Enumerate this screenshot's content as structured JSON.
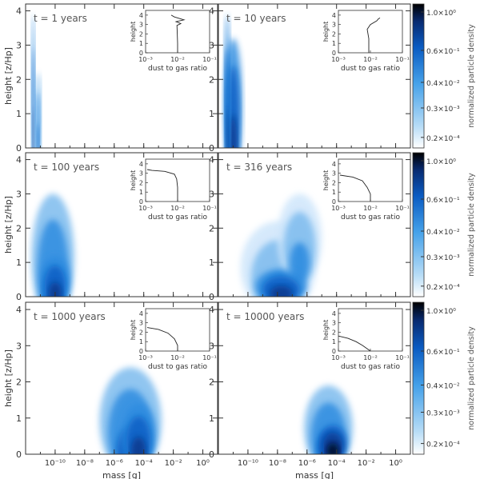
{
  "chart_data": [
    {
      "type": "heatmap",
      "panel_label": "t = 1 years",
      "xlabel": "",
      "ylabel": "height [z/Hp]",
      "x_scale": "log",
      "xlim": [
        1e-12,
        10
      ],
      "ylim": [
        0,
        4.2
      ],
      "x_ticks": [
        "10⁻¹⁰",
        "10⁻⁸",
        "10⁻⁶",
        "10⁻⁴",
        "10⁻²",
        "10⁰"
      ],
      "y_ticks": [
        "0",
        "1",
        "2",
        "3",
        "4"
      ],
      "blobs": [
        {
          "m_lo": -11.6,
          "m_hi": -11.35,
          "z_lo": 0,
          "z_hi": 3.9,
          "peak": 0.9
        },
        {
          "m_lo": -11.35,
          "m_hi": -10.95,
          "z_lo": 0,
          "z_hi": 2.2,
          "peak": 0.6
        }
      ],
      "inset": {
        "xlabel": "dust to gas ratio",
        "ylabel": "height",
        "x_ticks": [
          "10⁻³",
          "10⁻²",
          "10⁻¹"
        ],
        "y_ticks": [
          "0",
          "1",
          "2",
          "3",
          "4"
        ],
        "xlim": [
          -3,
          -1
        ],
        "ylim": [
          0,
          4.5
        ],
        "profile": [
          [
            -2.0,
            0
          ],
          [
            -2.0,
            1.0
          ],
          [
            -2.01,
            2.0
          ],
          [
            -2.02,
            2.9
          ],
          [
            -1.9,
            3.1
          ],
          [
            -2.05,
            3.3
          ],
          [
            -1.8,
            3.5
          ],
          [
            -2.1,
            3.8
          ],
          [
            -2.2,
            4.0
          ]
        ]
      }
    },
    {
      "type": "heatmap",
      "panel_label": "t = 10 years",
      "xlabel": "",
      "ylabel": "",
      "x_scale": "log",
      "xlim": [
        1e-12,
        10
      ],
      "ylim": [
        0,
        4.2
      ],
      "x_ticks": [
        "10⁻¹⁰",
        "10⁻⁸",
        "10⁻⁶",
        "10⁻⁴",
        "10⁻²",
        "10⁰"
      ],
      "y_ticks": [
        "0",
        "1",
        "2",
        "3",
        "4"
      ],
      "blobs": [
        {
          "m_lo": -11.6,
          "m_hi": -10.4,
          "z_lo": 0,
          "z_hi": 3.2,
          "peak": 0.85
        },
        {
          "m_lo": -11.6,
          "m_hi": -11.2,
          "z_lo": 0,
          "z_hi": 3.9,
          "peak": 0.8
        }
      ],
      "inset": {
        "xlabel": "dust to gas ratio",
        "ylabel": "height",
        "x_ticks": [
          "10⁻³",
          "10⁻²",
          "10⁻¹"
        ],
        "y_ticks": [
          "0",
          "1",
          "2",
          "3",
          "4"
        ],
        "xlim": [
          -3,
          -1
        ],
        "ylim": [
          0,
          4.5
        ],
        "profile": [
          [
            -2.05,
            0
          ],
          [
            -2.05,
            1.5
          ],
          [
            -2.1,
            2.5
          ],
          [
            -2.0,
            3.0
          ],
          [
            -1.8,
            3.4
          ],
          [
            -1.75,
            3.6
          ],
          [
            -1.7,
            3.7
          ]
        ]
      }
    },
    {
      "type": "heatmap",
      "panel_label": "t = 100 years",
      "xlabel": "",
      "ylabel": "height [z/Hp]",
      "x_scale": "log",
      "xlim": [
        1e-12,
        10
      ],
      "ylim": [
        0,
        4.2
      ],
      "x_ticks": [
        "10⁻¹⁰",
        "10⁻⁸",
        "10⁻⁶",
        "10⁻⁴",
        "10⁻²",
        "10⁰"
      ],
      "y_ticks": [
        "0",
        "1",
        "2",
        "3",
        "4"
      ],
      "blobs": [
        {
          "m_lo": -11.6,
          "m_hi": -8.7,
          "z_lo": 0,
          "z_hi": 3.0,
          "peak": 0.75
        },
        {
          "m_lo": -11.0,
          "m_hi": -9.0,
          "z_lo": 0,
          "z_hi": 1.2,
          "peak": 0.95
        }
      ],
      "inset": {
        "xlabel": "dust to gas ratio",
        "ylabel": "height",
        "x_ticks": [
          "10⁻³",
          "10⁻²",
          "10⁻¹"
        ],
        "y_ticks": [
          "0",
          "1",
          "2",
          "3",
          "4"
        ],
        "xlim": [
          -3,
          -1
        ],
        "ylim": [
          0,
          4.5
        ],
        "profile": [
          [
            -2.0,
            0
          ],
          [
            -2.0,
            1.5
          ],
          [
            -2.03,
            2.4
          ],
          [
            -2.1,
            2.9
          ],
          [
            -2.4,
            3.2
          ],
          [
            -2.8,
            3.3
          ],
          [
            -2.95,
            3.4
          ]
        ]
      }
    },
    {
      "type": "heatmap",
      "panel_label": "t = 316 years",
      "xlabel": "",
      "ylabel": "",
      "x_scale": "log",
      "xlim": [
        1e-12,
        10
      ],
      "ylim": [
        0,
        4.2
      ],
      "x_ticks": [
        "10⁻¹⁰",
        "10⁻⁸",
        "10⁻⁶",
        "10⁻⁴",
        "10⁻²",
        "10⁰"
      ],
      "y_ticks": [
        "0",
        "1",
        "2",
        "3",
        "4"
      ],
      "blobs": [
        {
          "m_lo": -10.5,
          "m_hi": -5.4,
          "z_lo": 0,
          "z_hi": 2.2,
          "peak": 0.55
        },
        {
          "m_lo": -8.0,
          "m_hi": -5.0,
          "z_lo": 0.9,
          "z_hi": 3.0,
          "peak": 0.5
        },
        {
          "m_lo": -9.5,
          "m_hi": -6.0,
          "z_lo": 0,
          "z_hi": 0.8,
          "peak": 0.9
        }
      ],
      "inset": {
        "xlabel": "dust to gas ratio",
        "ylabel": "height",
        "x_ticks": [
          "10⁻³",
          "10⁻²",
          "10⁻¹"
        ],
        "y_ticks": [
          "0",
          "1",
          "2",
          "3",
          "4"
        ],
        "xlim": [
          -3,
          -1
        ],
        "ylim": [
          0,
          4.5
        ],
        "profile": [
          [
            -2.0,
            0
          ],
          [
            -2.0,
            0.8
          ],
          [
            -2.1,
            1.5
          ],
          [
            -2.25,
            2.2
          ],
          [
            -2.55,
            2.6
          ],
          [
            -2.95,
            2.8
          ]
        ]
      }
    },
    {
      "type": "heatmap",
      "panel_label": "t = 1000 years",
      "xlabel": "mass [g]",
      "ylabel": "height [z/Hp]",
      "x_scale": "log",
      "xlim": [
        1e-12,
        10
      ],
      "ylim": [
        0,
        4.2
      ],
      "x_ticks": [
        "10⁻¹⁰",
        "10⁻⁸",
        "10⁻⁶",
        "10⁻⁴",
        "10⁻²",
        "10⁰"
      ],
      "y_ticks": [
        "0",
        "1",
        "2",
        "3",
        "4"
      ],
      "blobs": [
        {
          "m_lo": -7.0,
          "m_hi": -2.8,
          "z_lo": 0,
          "z_hi": 2.4,
          "peak": 0.6
        },
        {
          "m_lo": -5.5,
          "m_hi": -3.2,
          "z_lo": 0,
          "z_hi": 1.4,
          "peak": 0.95
        }
      ],
      "inset": {
        "xlabel": "dust to gas ratio",
        "ylabel": "height",
        "x_ticks": [
          "10⁻³",
          "10⁻²",
          "10⁻¹"
        ],
        "y_ticks": [
          "0",
          "1",
          "2",
          "3",
          "4"
        ],
        "xlim": [
          -3,
          -1
        ],
        "ylim": [
          0,
          4.5
        ],
        "profile": [
          [
            -2.0,
            0
          ],
          [
            -2.0,
            0.6
          ],
          [
            -2.1,
            1.3
          ],
          [
            -2.3,
            1.9
          ],
          [
            -2.6,
            2.3
          ],
          [
            -2.95,
            2.5
          ]
        ]
      }
    },
    {
      "type": "heatmap",
      "panel_label": "t = 10000 years",
      "xlabel": "mass [g]",
      "ylabel": "",
      "x_scale": "log",
      "xlim": [
        1e-12,
        10
      ],
      "ylim": [
        0,
        4.2
      ],
      "x_ticks": [
        "10⁻¹⁰",
        "10⁻⁸",
        "10⁻⁶",
        "10⁻⁴",
        "10⁻²",
        "10⁰"
      ],
      "y_ticks": [
        "0",
        "1",
        "2",
        "3",
        "4"
      ],
      "blobs": [
        {
          "m_lo": -6.2,
          "m_hi": -2.9,
          "z_lo": 0,
          "z_hi": 1.9,
          "peak": 0.7
        },
        {
          "m_lo": -5.2,
          "m_hi": -3.3,
          "z_lo": 0,
          "z_hi": 0.8,
          "peak": 1.0
        }
      ],
      "inset": {
        "xlabel": "dust to gas ratio",
        "ylabel": "height",
        "x_ticks": [
          "10⁻³",
          "10⁻²",
          "10⁻¹"
        ],
        "y_ticks": [
          "0",
          "1",
          "2",
          "3",
          "4"
        ],
        "xlim": [
          -3,
          -1
        ],
        "ylim": [
          0,
          4.5
        ],
        "profile": [
          [
            -3.0,
            1.6
          ],
          [
            -2.7,
            1.35
          ],
          [
            -2.45,
            1.0
          ],
          [
            -2.25,
            0.6
          ],
          [
            -2.1,
            0.25
          ],
          [
            -2.0,
            0
          ]
        ]
      }
    }
  ],
  "colorbar": {
    "label": "normalized particle density",
    "tick_labels": [
      "1.0×10⁰",
      "0.6×10⁻¹",
      "0.4×10⁻²",
      "0.3×10⁻³",
      "0.2×10⁻⁴"
    ],
    "colors": [
      "#ffffff",
      "#b7dcf6",
      "#45a1e9",
      "#0a5bc2",
      "#082a70",
      "#000000"
    ]
  }
}
